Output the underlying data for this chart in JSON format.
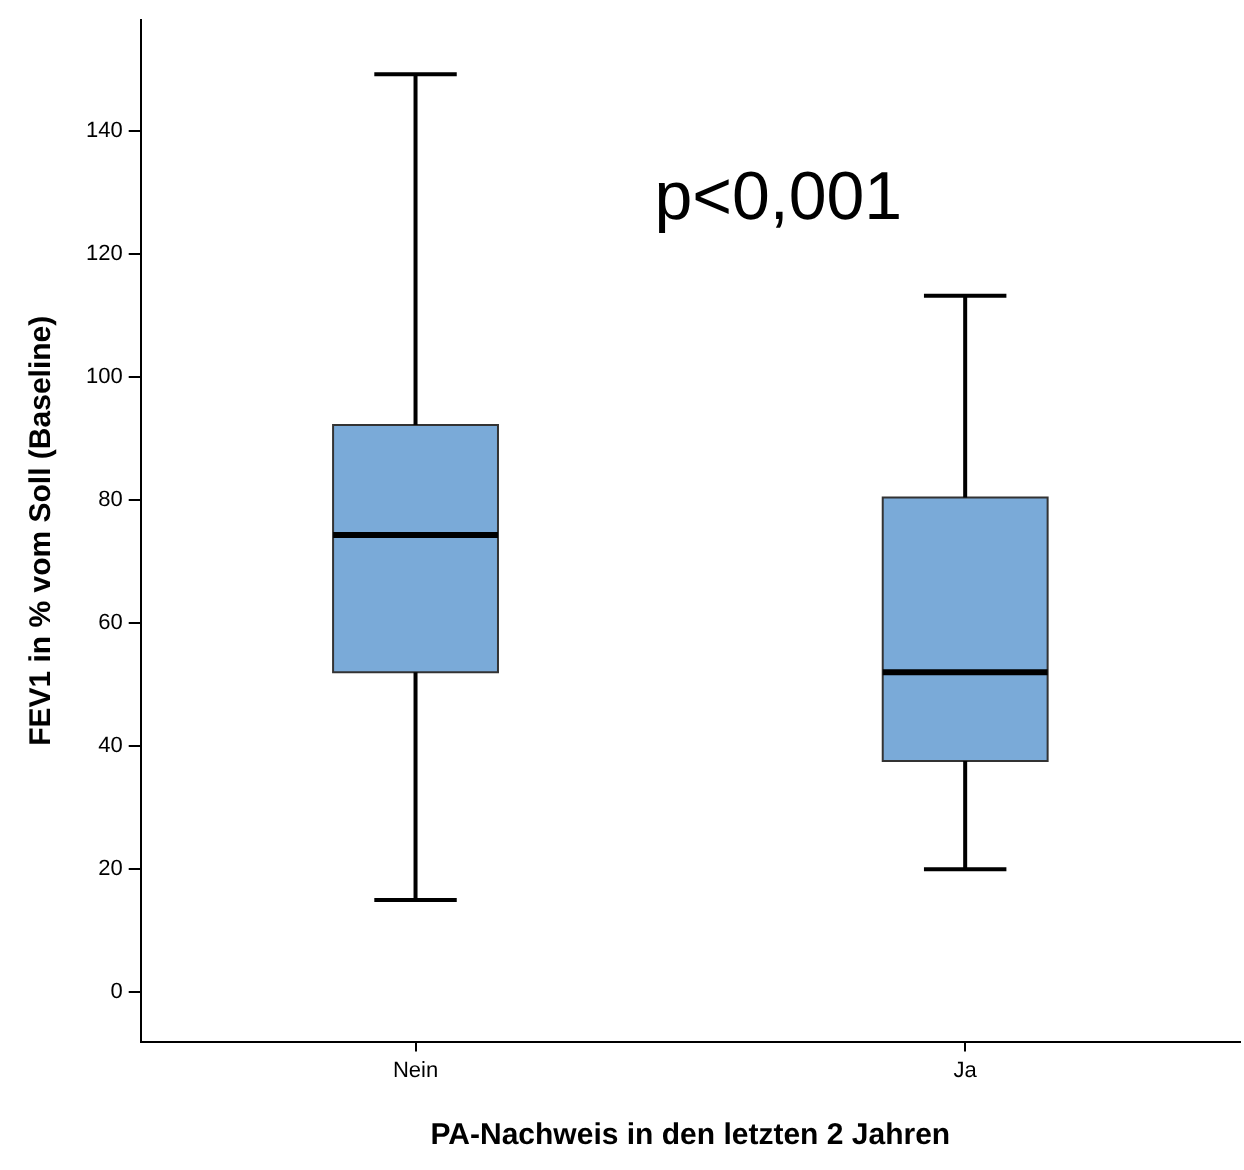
{
  "chart_data": {
    "type": "box",
    "xlabel": "PA-Nachweis in den letzten 2 Jahren",
    "ylabel": "FEV1 in % vom Soll (Baseline)",
    "categories": [
      "Nein",
      "Ja"
    ],
    "color": "#7aaad8",
    "boxes": [
      {
        "low": 15,
        "q1": 52,
        "median": 74.3,
        "q3": 92.2,
        "high": 149.2
      },
      {
        "low": 20,
        "q1": 37.6,
        "median": 52,
        "q3": 80.4,
        "high": 113.2
      }
    ],
    "ylim": [
      -8,
      158
    ],
    "yticks": [
      0,
      20,
      40,
      60,
      80,
      100,
      120,
      140
    ],
    "grid": false,
    "legend": false,
    "annotations": [
      "p<0,001"
    ]
  }
}
